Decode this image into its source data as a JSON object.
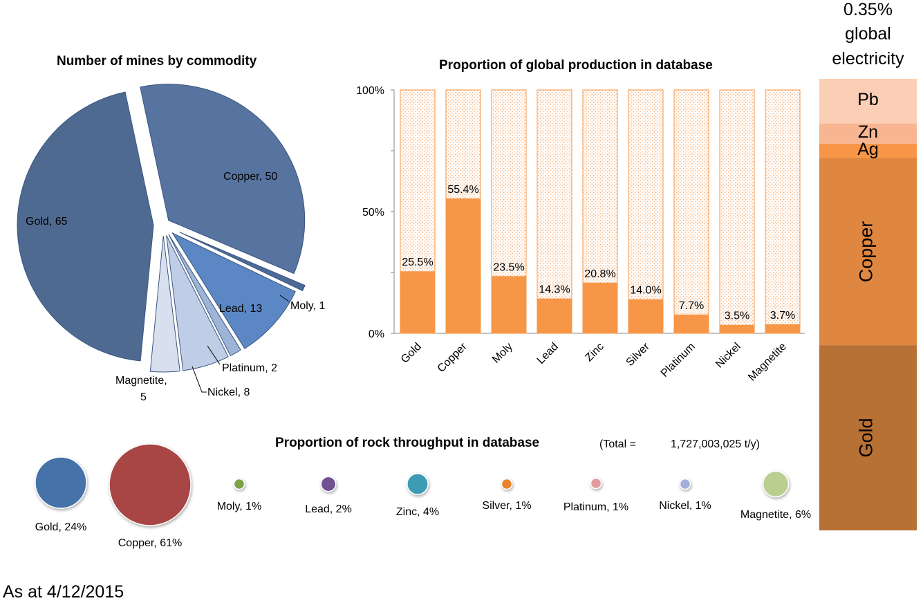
{
  "pie": {
    "title": "Number of mines by commodity",
    "type": "pie",
    "slices": [
      {
        "label": "Copper",
        "value": 50,
        "color": "#5774a0"
      },
      {
        "label": "Moly",
        "value": 1,
        "color": "#4c6a98"
      },
      {
        "label": "Lead",
        "value": 13,
        "color": "#5b87c4"
      },
      {
        "label": "Platinum",
        "value": 2,
        "color": "#9db4d8"
      },
      {
        "label": "Nickel",
        "value": 8,
        "color": "#bfcde6"
      },
      {
        "label": "Magnetite",
        "value": 5,
        "color": "#d8e0ef"
      },
      {
        "label": "Gold",
        "value": 65,
        "color": "#4f6a90"
      }
    ],
    "labels": {
      "copper": "Copper, 50",
      "moly": "Moly, 1",
      "lead": "Lead, 13",
      "platinum": "Platinum, 2",
      "nickel": "Nickel, 8",
      "magnetite_1": "Magnetite,",
      "magnetite_2": "5",
      "gold": "Gold, 65"
    }
  },
  "chart_data": [
    {
      "type": "bar",
      "title": "Proportion of global production in database",
      "categories": [
        "Gold",
        "Copper",
        "Moly",
        "Lead",
        "Zinc",
        "Silver",
        "Platinum",
        "Nickel",
        "Magnetite"
      ],
      "values": [
        25.5,
        55.4,
        23.5,
        14.3,
        20.8,
        14.0,
        7.7,
        3.5,
        3.7
      ],
      "data_labels": [
        "25.5%",
        "55.4%",
        "23.5%",
        "14.3%",
        "20.8%",
        "14.0%",
        "7.7%",
        "3.5%",
        "3.7%"
      ],
      "yticks": [
        "0%",
        "50%",
        "100%"
      ],
      "ylim": [
        0,
        100
      ],
      "bar_color": "#f79646",
      "remainder_color": "#fde9d9"
    },
    {
      "type": "scatter",
      "title": "Proportion of rock throughput in database",
      "total_label": "(Total =",
      "total_value": "1,727,003,025  t/y)",
      "bubbles": [
        {
          "label": "Gold, 24%",
          "value": 24,
          "color": "#4472a8"
        },
        {
          "label": "Copper, 61%",
          "value": 61,
          "color": "#a84545"
        },
        {
          "label": "Moly, 1%",
          "value": 1,
          "color": "#7aa346"
        },
        {
          "label": "Lead, 2%",
          "value": 2,
          "color": "#6f5192"
        },
        {
          "label": "Zinc, 4%",
          "value": 4,
          "color": "#3d9bb5"
        },
        {
          "label": "Silver, 1%",
          "value": 1,
          "color": "#e7822d"
        },
        {
          "label": "Platinum, 1%",
          "value": 1,
          "color": "#e49a9a"
        },
        {
          "label": "Nickel, 1%",
          "value": 1,
          "color": "#a3b0dd"
        },
        {
          "label": "Magnetite, 6%",
          "value": 6,
          "color": "#b8cf90"
        }
      ]
    }
  ],
  "stack": {
    "header": [
      "0.35%",
      "global",
      "electricity"
    ],
    "segments": [
      {
        "label": "Pb",
        "share": 0.0989,
        "color": "#fbcfb5"
      },
      {
        "label": "Zn",
        "share": 0.0449,
        "color": "#f8b592"
      },
      {
        "label": "Ag",
        "share": 0.0314,
        "color": "#f79646"
      },
      {
        "label": "Copper",
        "share": 0.4146,
        "color": "#df8740"
      },
      {
        "label": "Gold",
        "share": 0.4102,
        "color": "#b87135"
      }
    ]
  },
  "footer": "As at 4/12/2015"
}
